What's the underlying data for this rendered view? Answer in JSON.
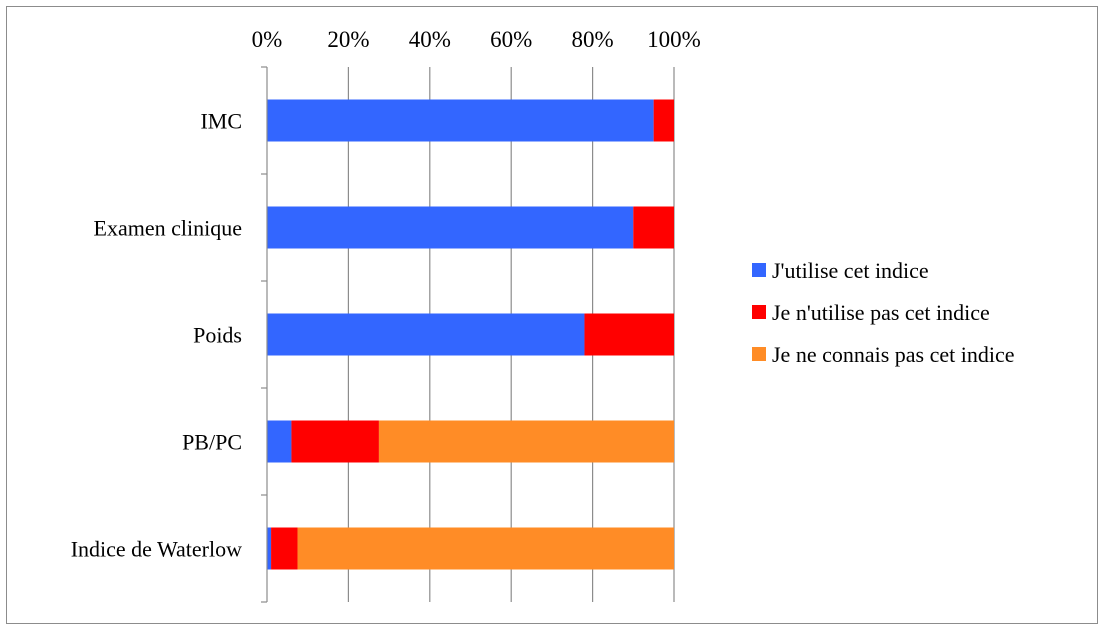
{
  "chart_data": {
    "type": "bar",
    "orientation": "horizontal",
    "stacked": "percent",
    "title": "",
    "xlabel": "",
    "ylabel": "",
    "xlim": [
      0,
      100
    ],
    "x_ticks": [
      "0%",
      "20%",
      "40%",
      "60%",
      "80%",
      "100%"
    ],
    "x_axis_position": "top",
    "grid": "vertical",
    "legend_position": "right",
    "categories": [
      "IMC",
      "Examen clinique",
      "Poids",
      "PB/PC",
      "Indice de Waterlow"
    ],
    "series": [
      {
        "name": "J'utilise cet indice",
        "color": "#3366ff",
        "values": [
          95,
          90,
          78,
          6,
          1
        ]
      },
      {
        "name": "Je n'utilise pas cet indice",
        "color": "#ff0000",
        "values": [
          5,
          10,
          22,
          21.5,
          6.5
        ]
      },
      {
        "name": "Je ne connais pas cet indice",
        "color": "#ff8c26",
        "values": [
          0,
          0,
          0,
          72.5,
          92.5
        ]
      }
    ]
  }
}
